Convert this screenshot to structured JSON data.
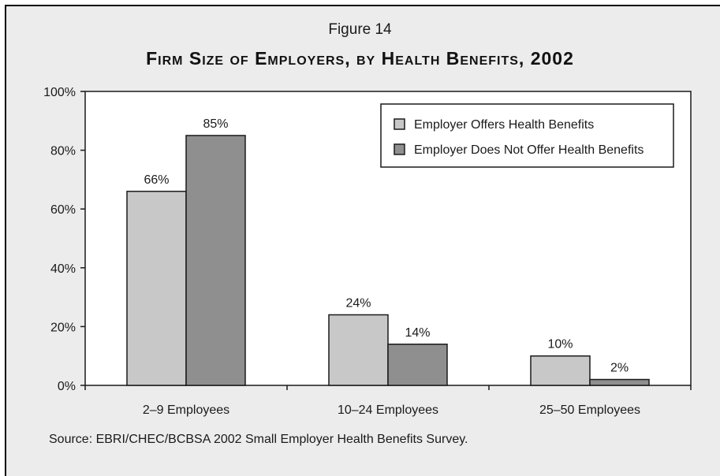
{
  "figure_label": "Figure 14",
  "title": "Firm Size of Employers, by Health Benefits, 2002",
  "source": "Source: EBRI/CHEC/BCBSA 2002 Small Employer Health Benefits Survey.",
  "colors": {
    "background": "#ececec",
    "plot_area": "#ffffff",
    "offers": "#c8c8c8",
    "does_not_offer": "#8f8f8f",
    "outline": "#1a1a1a"
  },
  "chart_data": {
    "type": "bar",
    "title": "Firm Size of Employers, by Health Benefits, 2002",
    "categories": [
      "2–9 Employees",
      "10–24 Employees",
      "25–50 Employees"
    ],
    "series": [
      {
        "name": "Employer Offers Health Benefits",
        "values": [
          66,
          24,
          10
        ],
        "labels": [
          "66%",
          "24%",
          "10%"
        ]
      },
      {
        "name": "Employer Does Not Offer Health Benefits",
        "values": [
          85,
          14,
          2
        ],
        "labels": [
          "85%",
          "14%",
          "2%"
        ]
      }
    ],
    "ylim": [
      0,
      100
    ],
    "yticks": [
      0,
      20,
      40,
      60,
      80,
      100
    ],
    "ytick_labels": [
      "0%",
      "20%",
      "40%",
      "60%",
      "80%",
      "100%"
    ],
    "grid": false,
    "legend_position": "top-right"
  }
}
